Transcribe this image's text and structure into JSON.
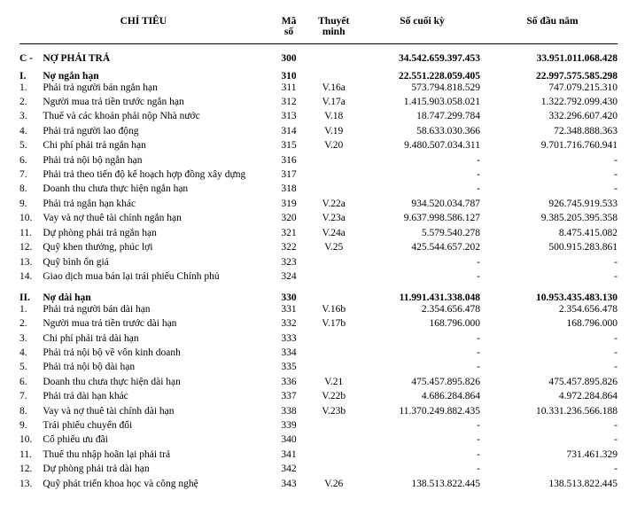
{
  "header": {
    "col_label": "CHỈ TIÊU",
    "col_code_l1": "Mã",
    "col_code_l2": "số",
    "col_note_l1": "Thuyết",
    "col_note_l2": "minh",
    "col_end": "Số cuối kỳ",
    "col_begin": "Số đầu năm"
  },
  "sectionC": {
    "num": "C -",
    "label": "NỢ PHẢI TRẢ",
    "code": "300",
    "note": "",
    "end": "34.542.659.397.453",
    "begin": "33.951.011.068.428"
  },
  "group1": {
    "num": "I.",
    "label": "Nợ ngắn hạn",
    "code": "310",
    "note": "",
    "end": "22.551.228.059.405",
    "begin": "22.997.575.585.298",
    "rows": [
      {
        "num": "1.",
        "label": "Phải trả người bán ngắn hạn",
        "code": "311",
        "note": "V.16a",
        "end": "573.794.818.529",
        "begin": "747.079.215.310"
      },
      {
        "num": "2.",
        "label": "Người mua trả tiền trước ngắn hạn",
        "code": "312",
        "note": "V.17a",
        "end": "1.415.903.058.021",
        "begin": "1.322.792.099.430"
      },
      {
        "num": "3.",
        "label": "Thuế và các khoản phải nộp Nhà nước",
        "code": "313",
        "note": "V.18",
        "end": "18.747.299.784",
        "begin": "332.296.607.420"
      },
      {
        "num": "4.",
        "label": "Phải trả người lao động",
        "code": "314",
        "note": "V.19",
        "end": "58.633.030.366",
        "begin": "72.348.888.363"
      },
      {
        "num": "5.",
        "label": "Chi phí phải trả ngắn hạn",
        "code": "315",
        "note": "V.20",
        "end": "9.480.507.034.311",
        "begin": "9.701.716.760.941"
      },
      {
        "num": "6.",
        "label": "Phải trả nội bộ ngắn hạn",
        "code": "316",
        "note": "",
        "end": "-",
        "begin": "-"
      },
      {
        "num": "7.",
        "label": "Phải trả theo tiến độ kế hoạch hợp đồng xây dựng",
        "code": "317",
        "note": "",
        "end": "-",
        "begin": "-"
      },
      {
        "num": "8.",
        "label": "Doanh thu chưa thực hiện ngắn hạn",
        "code": "318",
        "note": "",
        "end": "-",
        "begin": "-"
      },
      {
        "num": "9.",
        "label": "Phải trả ngắn hạn khác",
        "code": "319",
        "note": "V.22a",
        "end": "934.520.034.787",
        "begin": "926.745.919.533"
      },
      {
        "num": "10.",
        "label": "Vay và nợ thuê tài chính ngắn hạn",
        "code": "320",
        "note": "V.23a",
        "end": "9.637.998.586.127",
        "begin": "9.385.205.395.358"
      },
      {
        "num": "11.",
        "label": "Dự phòng phải trả ngắn hạn",
        "code": "321",
        "note": "V.24a",
        "end": "5.579.540.278",
        "begin": "8.475.415.082"
      },
      {
        "num": "12.",
        "label": "Quỹ khen thưởng, phúc lợi",
        "code": "322",
        "note": "V.25",
        "end": "425.544.657.202",
        "begin": "500.915.283.861"
      },
      {
        "num": "13.",
        "label": "Quỹ bình ổn giá",
        "code": "323",
        "note": "",
        "end": "-",
        "begin": "-"
      },
      {
        "num": "14.",
        "label": "Giao dịch mua bán lại trái phiếu Chính phủ",
        "code": "324",
        "note": "",
        "end": "-",
        "begin": "-"
      }
    ]
  },
  "group2": {
    "num": "II.",
    "label": "Nợ dài hạn",
    "code": "330",
    "note": "",
    "end": "11.991.431.338.048",
    "begin": "10.953.435.483.130",
    "rows": [
      {
        "num": "1.",
        "label": "Phải trả người bán dài hạn",
        "code": "331",
        "note": "V.16b",
        "end": "2.354.656.478",
        "begin": "2.354.656.478"
      },
      {
        "num": "2.",
        "label": "Người mua trả tiền trước dài hạn",
        "code": "332",
        "note": "V.17b",
        "end": "168.796.000",
        "begin": "168.796.000"
      },
      {
        "num": "3.",
        "label": "Chi phí phải trả dài hạn",
        "code": "333",
        "note": "",
        "end": "-",
        "begin": "-"
      },
      {
        "num": "4.",
        "label": "Phải trả nội bộ về vốn kinh doanh",
        "code": "334",
        "note": "",
        "end": "-",
        "begin": "-"
      },
      {
        "num": "5.",
        "label": "Phải trả nội bộ dài hạn",
        "code": "335",
        "note": "",
        "end": "-",
        "begin": "-"
      },
      {
        "num": "6.",
        "label": "Doanh thu chưa thực hiện dài hạn",
        "code": "336",
        "note": "V.21",
        "end": "475.457.895.826",
        "begin": "475.457.895.826"
      },
      {
        "num": "7.",
        "label": "Phải trả dài hạn khác",
        "code": "337",
        "note": "V.22b",
        "end": "4.686.284.864",
        "begin": "4.972.284.864"
      },
      {
        "num": "8.",
        "label": "Vay và nợ thuê tài chính dài hạn",
        "code": "338",
        "note": "V.23b",
        "end": "11.370.249.882.435",
        "begin": "10.331.236.566.188"
      },
      {
        "num": "9.",
        "label": "Trái phiếu chuyển đổi",
        "code": "339",
        "note": "",
        "end": "-",
        "begin": "-"
      },
      {
        "num": "10.",
        "label": "Cổ phiếu ưu đãi",
        "code": "340",
        "note": "",
        "end": "-",
        "begin": "-"
      },
      {
        "num": "11.",
        "label": "Thuế thu nhập hoãn lại phải trả",
        "code": "341",
        "note": "",
        "end": "-",
        "begin": "731.461.329"
      },
      {
        "num": "12.",
        "label": "Dự phòng phải trả dài hạn",
        "code": "342",
        "note": "",
        "end": "-",
        "begin": "-"
      },
      {
        "num": "13.",
        "label": "Quỹ phát triển khoa học và công nghệ",
        "code": "343",
        "note": "V.26",
        "end": "138.513.822.445",
        "begin": "138.513.822.445"
      }
    ]
  }
}
